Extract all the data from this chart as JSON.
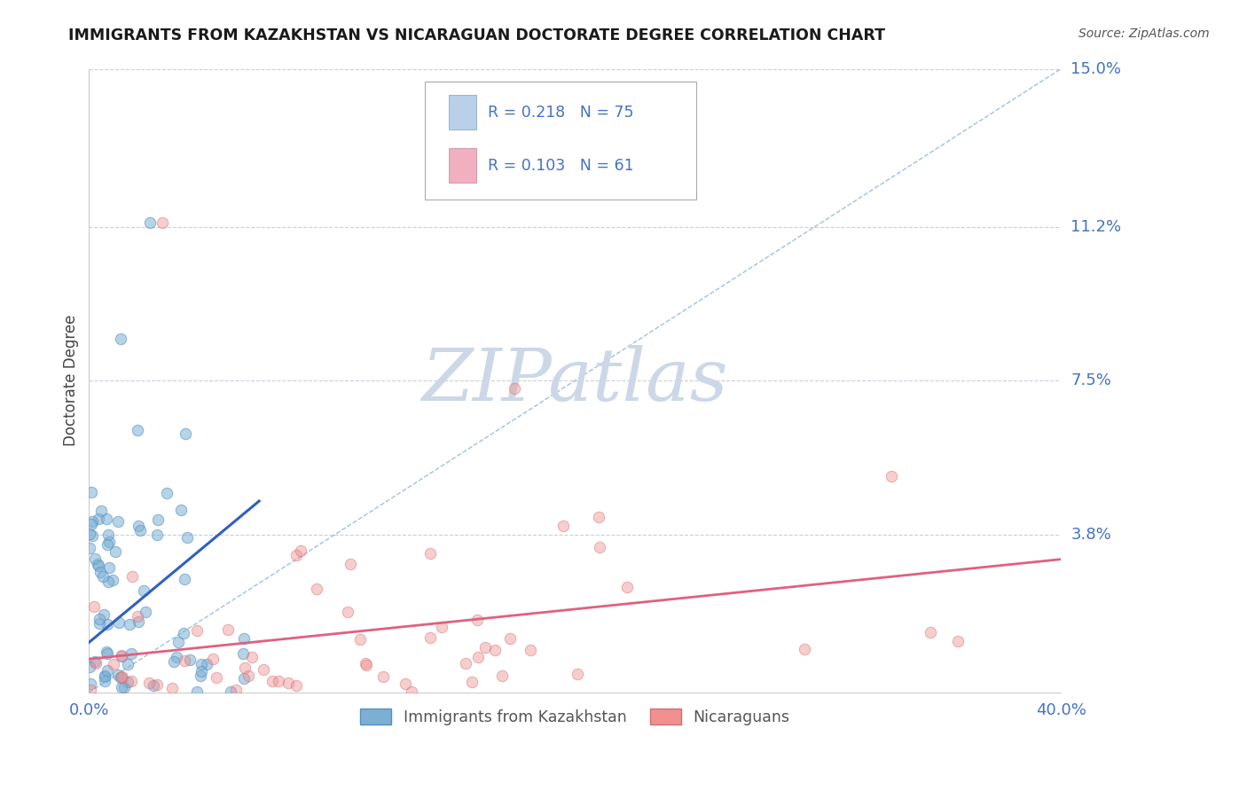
{
  "title": "IMMIGRANTS FROM KAZAKHSTAN VS NICARAGUAN DOCTORATE DEGREE CORRELATION CHART",
  "source_text": "Source: ZipAtlas.com",
  "ylabel": "Doctorate Degree",
  "xlim": [
    0.0,
    0.4
  ],
  "ylim": [
    0.0,
    0.15
  ],
  "ytick_labels": [
    "15.0%",
    "11.2%",
    "7.5%",
    "3.8%"
  ],
  "ytick_vals": [
    0.15,
    0.112,
    0.075,
    0.038
  ],
  "series1_name": "Immigrants from Kazakhstan",
  "series1_color": "#7bafd4",
  "series1_edge": "#5590c0",
  "series1_R": 0.218,
  "series1_N": 75,
  "series2_name": "Nicaraguans",
  "series2_color": "#f09090",
  "series2_edge": "#d07070",
  "series2_R": 0.103,
  "series2_N": 61,
  "trend1_color": "#3060c0",
  "trend2_color": "#e06080",
  "diag_color": "#8ab0d8",
  "watermark": "ZIPatlas",
  "watermark_color": "#ccd8e8",
  "background_color": "#ffffff",
  "grid_color": "#c8d0dc",
  "title_color": "#1a1a1a",
  "axis_label_color": "#4472c4",
  "source_color": "#555555",
  "ylabel_color": "#444444",
  "legend_box_color": "#aaaaaa",
  "legend_text_color": "#4472c4",
  "bottom_legend_text_color": "#555555",
  "seed": 12
}
